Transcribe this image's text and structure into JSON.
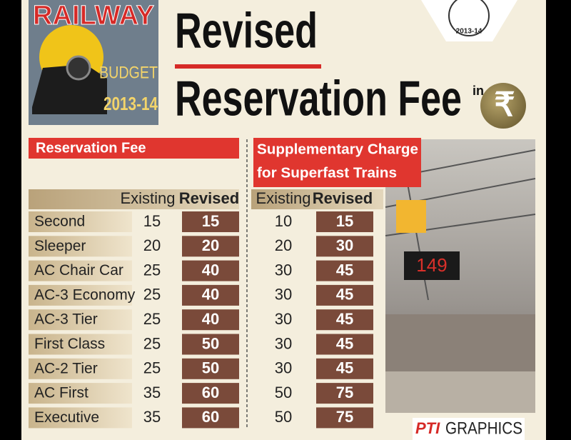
{
  "logo": {
    "title": "RAILWAY",
    "subtitle": "BUDGET",
    "year": "2013-14"
  },
  "seal": {
    "year": "2013-14"
  },
  "title": {
    "line1": "Revised",
    "line2": "Reservation Fee",
    "unit_prefix": "in",
    "unit_symbol": "₹"
  },
  "sections": [
    {
      "title": "Reservation Fee"
    },
    {
      "title_lines": [
        "Supplementary Charge",
        "for Superfast Trains"
      ]
    }
  ],
  "table": {
    "columns": [
      "Existing",
      "Revised",
      "Existing",
      "Revised"
    ],
    "rows": [
      [
        "Second",
        15,
        15,
        10,
        15
      ],
      [
        "Sleeper",
        20,
        20,
        20,
        30
      ],
      [
        "AC Chair Car",
        25,
        40,
        30,
        45
      ],
      [
        "AC-3 Economy",
        25,
        40,
        30,
        45
      ],
      [
        "AC-3 Tier",
        25,
        40,
        30,
        45
      ],
      [
        "First Class",
        25,
        50,
        30,
        45
      ],
      [
        "AC-2 Tier",
        25,
        50,
        30,
        45
      ],
      [
        "AC First",
        35,
        60,
        50,
        75
      ],
      [
        "Executive",
        35,
        60,
        50,
        75
      ]
    ]
  },
  "photo": {
    "display": "149"
  },
  "footer": {
    "brand": "PTI",
    "label": "GRAPHICS"
  }
}
